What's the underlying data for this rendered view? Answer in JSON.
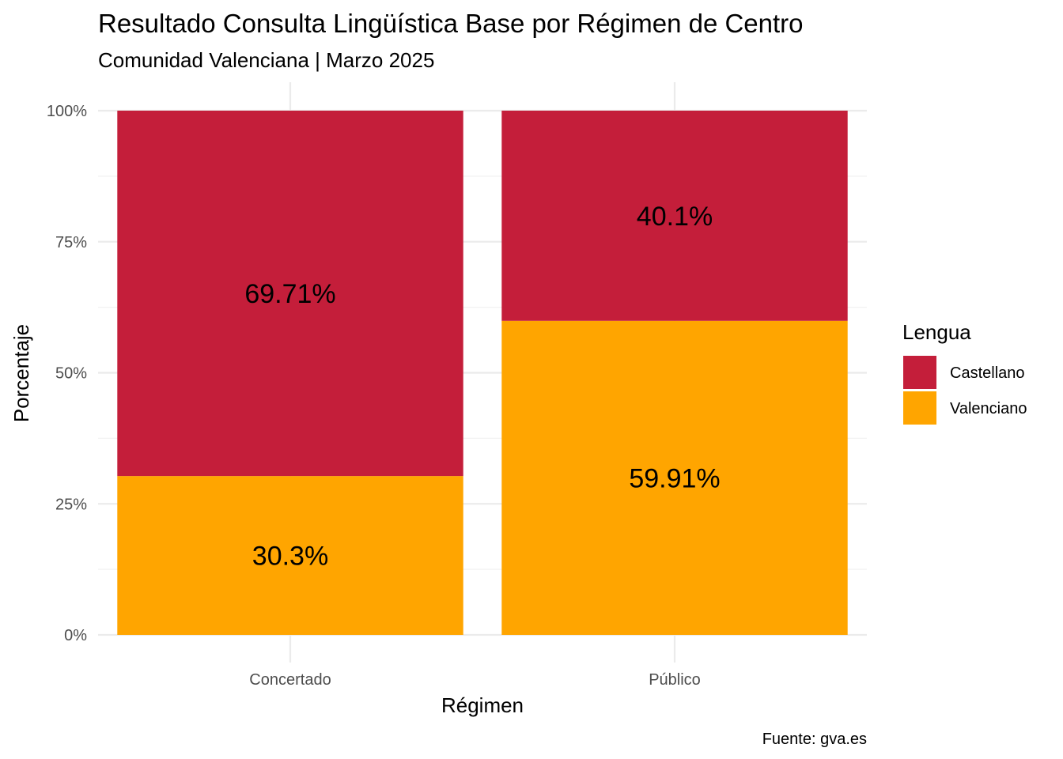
{
  "chart_data": {
    "type": "bar",
    "stacked": true,
    "title": "Resultado Consulta Lingüística Base por Régimen de Centro",
    "subtitle": "Comunidad Valenciana | Marzo 2025",
    "caption": "Fuente: gva.es",
    "xlabel": "Régimen",
    "ylabel": "Porcentaje",
    "categories": [
      "Concertado",
      "Público"
    ],
    "series": [
      {
        "name": "Castellano",
        "values": [
          69.71,
          40.1
        ],
        "labels": [
          "69.71%",
          "40.1%"
        ],
        "color": "#C41E3A"
      },
      {
        "name": "Valenciano",
        "values": [
          30.3,
          59.91
        ],
        "labels": [
          "30.3%",
          "59.91%"
        ],
        "color": "#FFA500"
      }
    ],
    "stack_order_bottom_to_top": [
      "Valenciano",
      "Castellano"
    ],
    "ylim": [
      0,
      100
    ],
    "yticks": [
      0,
      25,
      50,
      75,
      100
    ],
    "ytick_labels": [
      "0%",
      "25%",
      "50%",
      "75%",
      "100%"
    ],
    "grid": true,
    "legend": {
      "title": "Lengua",
      "position": "right",
      "items": [
        "Castellano",
        "Valenciano"
      ]
    }
  }
}
